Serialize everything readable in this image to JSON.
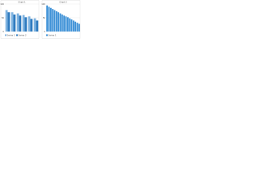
{
  "chart_data": [
    {
      "type": "bar",
      "title": "Chart 1",
      "categories": [
        null,
        null,
        null,
        null,
        null,
        null
      ],
      "series": [
        {
          "name": "Series 1",
          "color": "#7fb3e0",
          "values": [
            78,
            70,
            66,
            60,
            55,
            48
          ]
        },
        {
          "name": "Series 2",
          "color": "#2f7bbf",
          "values": [
            70,
            62,
            58,
            52,
            46,
            40
          ]
        }
      ],
      "ylim": [
        0,
        100
      ],
      "yticks": [
        0,
        50,
        100
      ],
      "grid": true,
      "legend": "bottom-left"
    },
    {
      "type": "bar",
      "title": "Chart 2",
      "categories": [
        null,
        null,
        null,
        null,
        null,
        null,
        null,
        null,
        null,
        null,
        null,
        null,
        null,
        null,
        null,
        null,
        null,
        null
      ],
      "series": [
        {
          "name": "Series 1",
          "color": "#3a8fd6",
          "values": [
            95,
            90,
            86,
            82,
            78,
            74,
            70,
            66,
            62,
            58,
            55,
            52,
            48,
            44,
            40,
            36,
            32,
            28
          ]
        }
      ],
      "ylim": [
        0,
        100
      ],
      "yticks": [
        0,
        50,
        100
      ],
      "grid": true,
      "legend": "bottom-left"
    }
  ]
}
